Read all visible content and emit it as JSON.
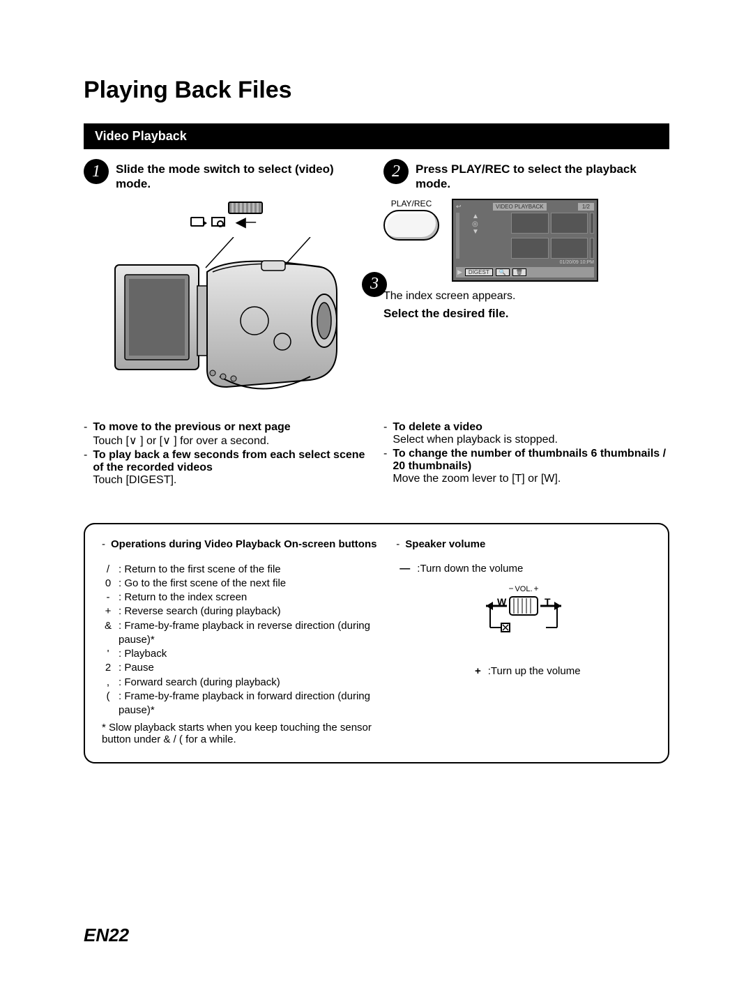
{
  "title": "Playing Back Files",
  "section_header": "Video Playback",
  "steps": {
    "s1": {
      "num": "1",
      "text": "Slide the mode switch to select       (video) mode."
    },
    "s2": {
      "num": "2",
      "text": "Press PLAY/REC to select the playback mode."
    },
    "s3": {
      "num": "3"
    }
  },
  "playrec_label": "PLAY/REC",
  "lcd": {
    "title": "VIDEO PLAYBACK",
    "count": "1/2",
    "date": "01/20/09 10:PM",
    "digest": "DIGEST"
  },
  "index_text": "The index screen appears.",
  "select_file": "Select the desired file.",
  "tips_left": {
    "move_head": "To move to the previous or next page",
    "move_body": "Touch [∨ ] or [∨ ] for over a second.",
    "play_head": "To play back a few seconds from each select scene of the recorded videos",
    "play_body": "Touch [DIGEST]."
  },
  "tips_right": {
    "delete_head": "To delete a video",
    "delete_body": "Select       when playback is stopped.",
    "thumbs_head": "To change the number of thumbnails  6 thumbnails / 20 thumbnails)",
    "thumbs_body": "Move the zoom lever to [T] or [W]."
  },
  "ops": {
    "head1": "Operations during Video Playback On-screen buttons",
    "items": [
      {
        "sym": "/",
        "txt": ": Return to the first scene of the file"
      },
      {
        "sym": "0",
        "txt": ": Go to the first scene of the next file"
      },
      {
        "sym": "-",
        "txt": ": Return to the index screen"
      },
      {
        "sym": "+",
        "txt": ": Reverse search (during playback)"
      },
      {
        "sym": "&",
        "txt": ": Frame-by-frame playback in reverse direction (during pause)*"
      },
      {
        "sym": "'",
        "txt": ": Playback"
      },
      {
        "sym": "2",
        "txt": ": Pause"
      },
      {
        "sym": ",",
        "txt": ": Forward search (during playback)"
      },
      {
        "sym": "(",
        "txt": ": Frame-by-frame playback in forward direction (during pause)*"
      }
    ],
    "note": "* Slow playback starts when you keep touching the sensor button under  & /  ( for a while."
  },
  "speaker": {
    "head": "Speaker volume",
    "down_sym": "—",
    "down_txt": ":Turn down the volume",
    "up_sym": "+",
    "up_txt": ":Turn up the volume",
    "vol_label": "VOL.",
    "w": "W",
    "t": "T"
  },
  "page_number": "EN22",
  "colors": {
    "bg": "#ffffff",
    "text": "#000000",
    "bar_bg": "#000000",
    "bar_text": "#ffffff",
    "lcd_bg": "#6d6d6d",
    "lcd_light": "#cccccc"
  }
}
